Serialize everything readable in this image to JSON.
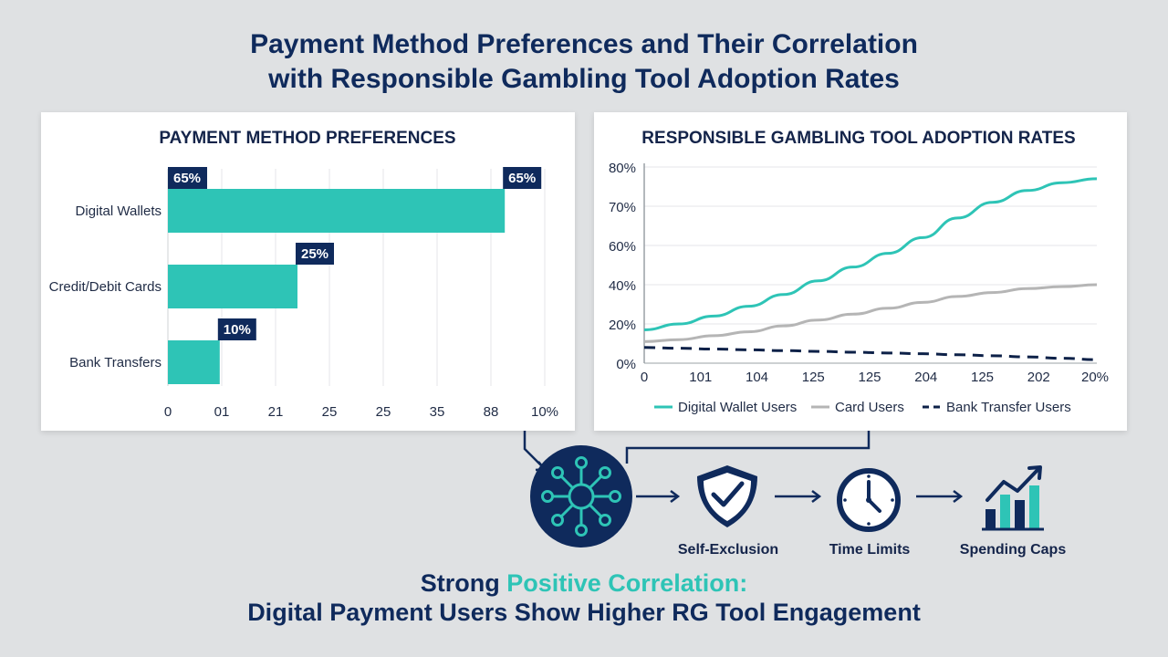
{
  "title": {
    "line1": "Payment Method Preferences and Their Correlation",
    "line2": "with Responsible Gambling Tool Adoption Rates"
  },
  "colors": {
    "navy": "#0f2a5c",
    "teal": "#2ec4b6",
    "gray": "#b5b5b5",
    "dark_navy": "#0d2148"
  },
  "chart_data": [
    {
      "type": "bar",
      "orientation": "horizontal",
      "title": "PAYMENT METHOD PREFERENCES",
      "categories": [
        "Digital Wallets",
        "Credit/Debit Cards",
        "Bank Transfers"
      ],
      "values": [
        65,
        25,
        10
      ],
      "data_labels": [
        "65%",
        "25%",
        "10%"
      ],
      "extra_label": "65%",
      "x_tick_labels": [
        "0",
        "01",
        "21",
        "25",
        "25",
        "35",
        "88",
        "10%"
      ],
      "xlim": [
        0,
        100
      ],
      "grid": "vertical"
    },
    {
      "type": "line",
      "title": "RESPONSIBLE GAMBLING TOOL ADOPTION RATES",
      "x_tick_labels": [
        "0",
        "101",
        "104",
        "125",
        "125",
        "204",
        "125",
        "202",
        "20%"
      ],
      "y_tick_labels": [
        "0%",
        "20%",
        "40%",
        "60%",
        "70%",
        "80%"
      ],
      "series": [
        {
          "name": "Digital Wallet Users",
          "style": "solid",
          "color": "#2ec4b6",
          "values": [
            17,
            20,
            24,
            29,
            35,
            42,
            49,
            56,
            62,
            67,
            71,
            74,
            76,
            77
          ]
        },
        {
          "name": "Card Users",
          "style": "solid",
          "color": "#b5b5b5",
          "values": [
            11,
            12,
            14,
            16,
            19,
            22,
            25,
            28,
            31,
            34,
            36,
            38,
            39,
            40
          ]
        },
        {
          "name": "Bank Transfer Users",
          "style": "dashed",
          "color": "#0d2148",
          "values": [
            8,
            7.6,
            7.2,
            6.8,
            6.4,
            6,
            5.6,
            5.2,
            4.8,
            4.3,
            3.8,
            3.2,
            2.5,
            1.8
          ]
        }
      ],
      "legend_position": "bottom",
      "grid": "horizontal"
    }
  ],
  "flow": {
    "hub_icon": "network-hub-icon",
    "steps": [
      {
        "label": "Self-Exclusion",
        "icon": "shield-check-icon"
      },
      {
        "label": "Time Limits",
        "icon": "clock-icon"
      },
      {
        "label": "Spending Caps",
        "icon": "bar-chart-up-icon"
      }
    ]
  },
  "footer": {
    "prefix": "Strong ",
    "highlight": "Positive Correlation:",
    "line2": "Digital Payment Users Show Higher RG Tool Engagement"
  }
}
